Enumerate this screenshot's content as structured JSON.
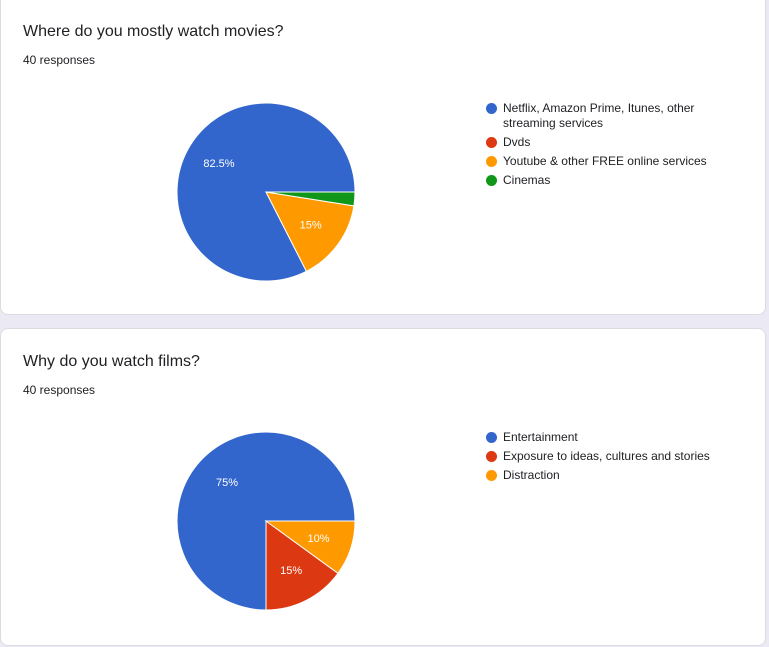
{
  "chart_data": [
    {
      "type": "pie",
      "title": "Where do you mostly watch movies?",
      "subtitle": "40 responses",
      "categories": [
        "Netflix, Amazon Prime, Itunes, other streaming services",
        "Dvds",
        "Youtube & other FREE online services",
        "Cinemas"
      ],
      "values": [
        82.5,
        0,
        15,
        2.5
      ],
      "value_labels": [
        "82.5%",
        "",
        "15%",
        ""
      ],
      "colors": [
        "#3366cc",
        "#dc3912",
        "#ff9900",
        "#109618"
      ],
      "legend_position": "right"
    },
    {
      "type": "pie",
      "title": "Why do you watch films?",
      "subtitle": "40 responses",
      "categories": [
        "Entertainment",
        "Exposure to ideas, cultures and stories",
        "Distraction"
      ],
      "values": [
        75,
        15,
        10
      ],
      "value_labels": [
        "75%",
        "15%",
        "10%"
      ],
      "colors": [
        "#3366cc",
        "#dc3912",
        "#ff9900"
      ],
      "legend_position": "right"
    }
  ]
}
